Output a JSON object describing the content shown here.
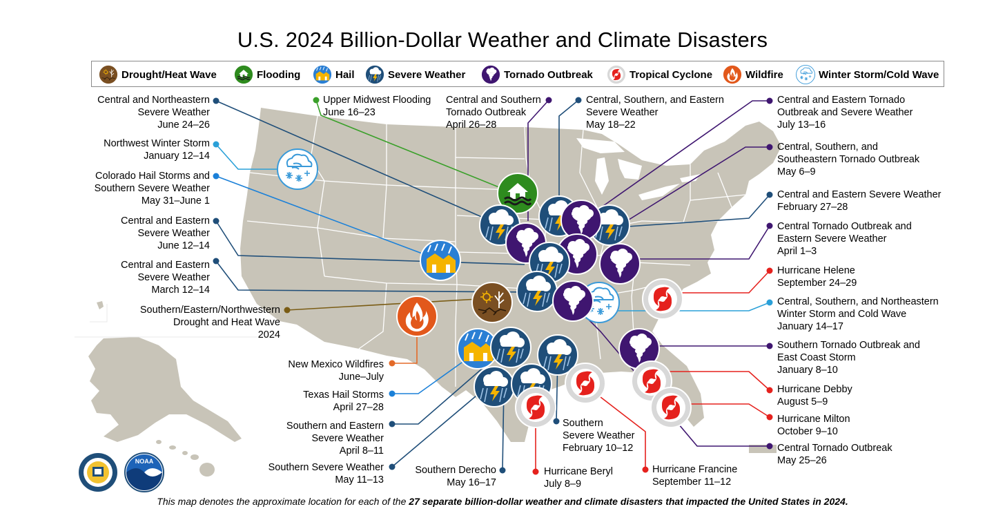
{
  "title": "U.S. 2024 Billion-Dollar Weather and Climate Disasters",
  "legend": [
    {
      "label": "Drought/Heat Wave",
      "icon": "drought-icon"
    },
    {
      "label": "Flooding",
      "icon": "flooding-icon"
    },
    {
      "label": "Hail",
      "icon": "hail-icon"
    },
    {
      "label": "Severe Weather",
      "icon": "severe-weather-icon"
    },
    {
      "label": "Tornado Outbreak",
      "icon": "tornado-icon"
    },
    {
      "label": "Tropical Cyclone",
      "icon": "tropical-cyclone-icon"
    },
    {
      "label": "Wildfire",
      "icon": "wildfire-icon"
    },
    {
      "label": "Winter Storm/Cold Wave",
      "icon": "winter-storm-icon"
    }
  ],
  "colors": {
    "map_land": "#c8c4b8",
    "map_border": "#ffffff",
    "severe_bg": "#1f4e79",
    "tornado_bg": "#3f1670",
    "tropical_ring": "#d8d8d8",
    "tropical_icon": "#e5211d",
    "flood_bg": "#2e8b1e",
    "hail_bg": "#2a7fd4",
    "hail_bar": "#f5b400",
    "wildfire_bg": "#e2581b",
    "drought_bg": "#7a4f22",
    "winter_color": "#3a9ad9",
    "leader_navy": "#1f4e79",
    "leader_purple": "#3f1670",
    "leader_red": "#e5211d",
    "leader_green": "#3aa02a",
    "leader_lightblue": "#2aa0d8",
    "leader_blue": "#1b80d8",
    "leader_brown": "#7a5c14",
    "leader_orange": "#e36a28"
  },
  "events": [
    {
      "label": "Central and Northeastern\nSevere Weather\nJune 24–26",
      "type": "severe"
    },
    {
      "label": "Northwest Winter Storm\nJanuary 12–14",
      "type": "winter"
    },
    {
      "label": "Colorado Hail Storms and\nSouthern Severe Weather\nMay 31–June 1",
      "type": "hail"
    },
    {
      "label": "Central and Eastern\nSevere Weather\nJune 12–14",
      "type": "severe"
    },
    {
      "label": "Central and Eastern\nSevere Weather\nMarch 12–14",
      "type": "severe"
    },
    {
      "label": "Southern/Eastern/Northwestern\nDrought and Heat Wave\n2024",
      "type": "drought"
    },
    {
      "label": "New Mexico Wildfires\nJune–July",
      "type": "wildfire"
    },
    {
      "label": "Texas Hail Storms\nApril 27–28",
      "type": "hail"
    },
    {
      "label": "Southern and Eastern\nSevere Weather\nApril 8–11",
      "type": "severe"
    },
    {
      "label": "Southern Severe Weather\nMay 11–13",
      "type": "severe"
    },
    {
      "label": "Southern Derecho\nMay 16–17",
      "type": "severe"
    },
    {
      "label": "Hurricane Beryl\nJuly 8–9",
      "type": "tropical"
    },
    {
      "label": "Southern\nSevere Weather\nFebruary 10–12",
      "type": "severe"
    },
    {
      "label": "Hurricane Francine\nSeptember 11–12",
      "type": "tropical"
    },
    {
      "label": "Upper Midwest Flooding\nJune 16–23",
      "type": "flooding"
    },
    {
      "label": "Central and Southern\nTornado Outbreak\nApril 26–28",
      "type": "tornado"
    },
    {
      "label": "Central, Southern, and Eastern\nSevere Weather\nMay 18–22",
      "type": "severe"
    },
    {
      "label": "Central and Eastern Tornado\nOutbreak and Severe Weather\nJuly 13–16",
      "type": "tornado"
    },
    {
      "label": "Central, Southern, and\nSoutheastern Tornado Outbreak\nMay 6–9",
      "type": "tornado"
    },
    {
      "label": "Central and Eastern Severe Weather\nFebruary 27–28",
      "type": "severe"
    },
    {
      "label": "Central Tornado Outbreak and\nEastern Severe Weather\nApril 1–3",
      "type": "tornado"
    },
    {
      "label": "Hurricane Helene\nSeptember 24–29",
      "type": "tropical"
    },
    {
      "label": "Central, Southern, and Northeastern\nWinter Storm and Cold Wave\nJanuary 14–17",
      "type": "winter"
    },
    {
      "label": "Southern Tornado Outbreak and\nEast Coast Storm\nJanuary 8–10",
      "type": "tornado"
    },
    {
      "label": "Hurricane Debby\nAugust 5–9",
      "type": "tropical"
    },
    {
      "label": "Hurricane Milton\nOctober 9–10",
      "type": "tropical"
    },
    {
      "label": "Central Tornado Outbreak\nMay 25–26",
      "type": "tornado"
    }
  ],
  "footnote": {
    "pre": "This map denotes the approximate location for each of the ",
    "bold": "27 separate billion-dollar weather and climate disasters that impacted the United States in 2024.",
    "post": ""
  },
  "seals": [
    {
      "name": "department-of-commerce-seal-icon"
    },
    {
      "name": "noaa-logo-icon",
      "text": "NOAA"
    }
  ]
}
